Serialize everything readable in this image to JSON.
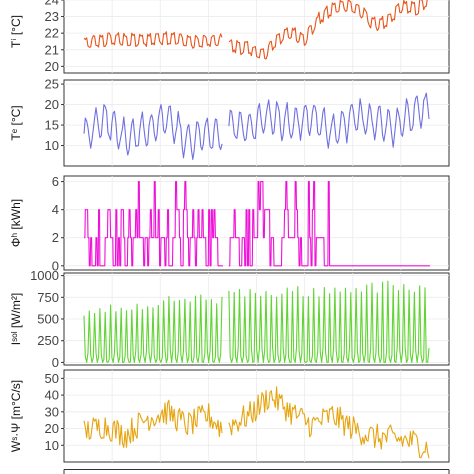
{
  "chart_data": [
    {
      "type": "line",
      "ylabel": "Tⁱ [°C]",
      "ylim": [
        19.6,
        24.6
      ],
      "yticks": [
        20,
        21,
        22,
        23,
        24
      ],
      "color": "#e8541a",
      "x_range": [
        0,
        100
      ],
      "segments": [
        {
          "x": [
            0,
            8,
            16,
            24,
            32,
            40
          ],
          "y": [
            21.3,
            21.6,
            21.5,
            21.7,
            21.4,
            21.5
          ]
        },
        {
          "x": [
            42,
            48,
            52,
            56,
            60,
            64,
            68,
            72,
            76,
            80,
            84,
            88,
            92,
            96,
            100
          ],
          "y": [
            21.2,
            21.0,
            20.6,
            21.6,
            22.0,
            21.6,
            22.8,
            23.4,
            23.7,
            23.3,
            22.5,
            22.6,
            23.6,
            23.4,
            23.9
          ]
        }
      ]
    },
    {
      "type": "line",
      "ylabel": "Tᵉ [°C]",
      "ylim": [
        5,
        26
      ],
      "yticks": [
        10,
        15,
        20,
        25
      ],
      "color": "#6f6fe0",
      "x_range": [
        0,
        100
      ],
      "segments": [
        {
          "x": [
            0,
            6,
            12,
            18,
            24,
            30,
            36,
            40
          ],
          "y": [
            12.5,
            16.5,
            11.5,
            13.5,
            17.0,
            11.0,
            13.0,
            12.5
          ]
        },
        {
          "x": [
            42,
            48,
            54,
            60,
            66,
            72,
            78,
            84,
            90,
            96,
            100
          ],
          "y": [
            14.5,
            14.5,
            17.5,
            15.0,
            17.0,
            13.0,
            17.0,
            15.5,
            14.5,
            18.5,
            19.5
          ]
        }
      ]
    },
    {
      "type": "line",
      "ylabel": "Φʰ [kWh]",
      "ylim": [
        -0.3,
        6.4
      ],
      "yticks": [
        0,
        2,
        4,
        6
      ],
      "color": "#ee11d8",
      "x_range": [
        0,
        100
      ],
      "segments": [
        {
          "x": [
            0,
            5,
            10,
            15,
            20,
            25,
            30,
            35,
            40
          ],
          "y": [
            2,
            4,
            2,
            4,
            2,
            2,
            4,
            2,
            2
          ]
        },
        {
          "x": [
            42,
            48,
            52,
            56,
            60,
            64,
            68,
            72,
            76,
            80,
            84,
            88,
            92,
            96,
            100
          ],
          "y": [
            2,
            2,
            2,
            0,
            2,
            0,
            2,
            0,
            0,
            0,
            0,
            0,
            0,
            0,
            0
          ]
        }
      ]
    },
    {
      "type": "line",
      "ylabel": "Iˢᵒˡ [W/m²]",
      "ylim": [
        -30,
        1030
      ],
      "yticks": [
        0,
        250,
        500,
        750,
        1000
      ],
      "color": "#61d433",
      "x_range": [
        0,
        100
      ],
      "segments": [
        {
          "x": [
            0,
            8,
            16,
            24,
            32,
            40
          ],
          "y": [
            620,
            680,
            700,
            760,
            800,
            760
          ]
        },
        {
          "x": [
            42,
            50,
            58,
            66,
            74,
            82,
            90,
            96,
            100
          ],
          "y": [
            880,
            850,
            880,
            880,
            900,
            940,
            940,
            900,
            950
          ]
        }
      ]
    },
    {
      "type": "line",
      "ylabel": "Wˢ·Ψ [m°C/s]",
      "ylim": [
        0,
        55
      ],
      "yticks": [
        10,
        20,
        30,
        40,
        50
      ],
      "color": "#e6a40f",
      "x_range": [
        0,
        100
      ],
      "segments": [
        {
          "x": [
            0,
            6,
            12,
            18,
            24,
            30,
            36,
            40
          ],
          "y": [
            18,
            22,
            16,
            26,
            30,
            22,
            28,
            20
          ]
        },
        {
          "x": [
            42,
            48,
            54,
            60,
            66,
            72,
            78,
            84,
            90,
            96,
            100
          ],
          "y": [
            22,
            28,
            40,
            30,
            22,
            28,
            20,
            15,
            14,
            12,
            8
          ]
        }
      ]
    }
  ]
}
